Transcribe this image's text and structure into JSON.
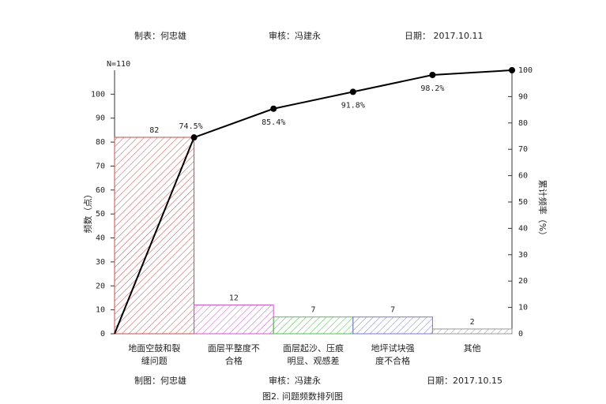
{
  "header": {
    "maker": "制表：何忠雄",
    "reviewer": "审核：冯建永",
    "date": "日期： 2017.10.11"
  },
  "chart_data": {
    "type": "pareto",
    "n_label": "N=110",
    "categories": [
      [
        "地面空鼓和裂",
        "缝问题"
      ],
      [
        "面层平整度不",
        "合格"
      ],
      [
        "面层起沙、压痕",
        "明显、观感差"
      ],
      [
        "地坪试块强",
        "度不合格"
      ],
      [
        "其他"
      ]
    ],
    "values": [
      82,
      12,
      7,
      7,
      2
    ],
    "colors": [
      "#c0504d",
      "#cc55cc",
      "#55bb55",
      "#7777cc",
      "#999999"
    ],
    "ylim": [
      0,
      110
    ],
    "yticks": [
      0,
      10,
      20,
      30,
      40,
      50,
      60,
      70,
      80,
      90,
      100
    ],
    "y_label": "频数（点）",
    "y2lim": [
      0,
      100
    ],
    "y2ticks": [
      0,
      10,
      20,
      30,
      40,
      50,
      60,
      70,
      80,
      90,
      100
    ],
    "y2_label": "累计频率（%）",
    "cumulative": {
      "values": [
        0,
        74.5,
        85.4,
        91.8,
        98.2,
        100
      ],
      "value_labels": [
        null,
        "74.5%",
        "85.4%",
        "91.8%",
        "98.2%",
        null
      ],
      "color": "#000000",
      "axis": "y2"
    }
  },
  "footer": {
    "maker": "制图：何忠雄",
    "reviewer": "审核：冯建永",
    "date": "日期：2017.10.15"
  },
  "caption": "图2. 问题频数排列图"
}
